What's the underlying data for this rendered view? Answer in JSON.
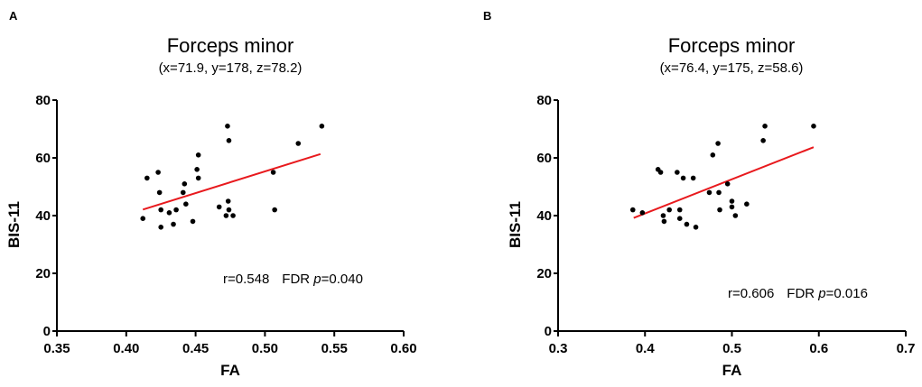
{
  "chart_data": [
    {
      "panel_label": "A",
      "type": "scatter",
      "title": "Forceps minor",
      "subtitle": "(x=71.9, y=178, z=78.2)",
      "xlabel": "FA",
      "ylabel": "BIS-11",
      "xlim": [
        0.35,
        0.6
      ],
      "ylim": [
        0,
        80
      ],
      "xticks": [
        "0.35",
        "0.40",
        "0.45",
        "0.50",
        "0.55",
        "0.60"
      ],
      "yticks": [
        "0",
        "20",
        "40",
        "60",
        "80"
      ],
      "grid": false,
      "point_color": "#000000",
      "fit_color": "#e8191d",
      "points": [
        [
          0.412,
          39
        ],
        [
          0.415,
          53
        ],
        [
          0.423,
          55
        ],
        [
          0.424,
          48
        ],
        [
          0.425,
          42
        ],
        [
          0.425,
          36
        ],
        [
          0.431,
          41
        ],
        [
          0.434,
          37
        ],
        [
          0.436,
          42
        ],
        [
          0.442,
          51
        ],
        [
          0.441,
          48
        ],
        [
          0.443,
          44
        ],
        [
          0.448,
          38
        ],
        [
          0.452,
          61
        ],
        [
          0.451,
          56
        ],
        [
          0.452,
          53
        ],
        [
          0.467,
          43
        ],
        [
          0.473,
          71
        ],
        [
          0.474,
          66
        ],
        [
          0.4735,
          45
        ],
        [
          0.474,
          42
        ],
        [
          0.472,
          40
        ],
        [
          0.477,
          40
        ],
        [
          0.506,
          55
        ],
        [
          0.507,
          42
        ],
        [
          0.524,
          65
        ],
        [
          0.541,
          71
        ]
      ],
      "fit_line": [
        [
          0.412,
          42.1
        ],
        [
          0.54,
          61.3
        ]
      ],
      "stats": {
        "r": "r=0.548",
        "fdr": "FDR ",
        "p_symbol": "p",
        "p_value": "=0.040"
      }
    },
    {
      "panel_label": "B",
      "type": "scatter",
      "title": "Forceps minor",
      "subtitle": "(x=76.4, y=175, z=58.6)",
      "xlabel": "FA",
      "ylabel": "BIS-11",
      "xlim": [
        0.3,
        0.7
      ],
      "ylim": [
        0,
        80
      ],
      "xticks": [
        "0.3",
        "0.4",
        "0.5",
        "0.6",
        "0.7"
      ],
      "yticks": [
        "0",
        "20",
        "40",
        "60",
        "80"
      ],
      "grid": false,
      "point_color": "#000000",
      "fit_color": "#e8191d",
      "points": [
        [
          0.386,
          42
        ],
        [
          0.397,
          41
        ],
        [
          0.415,
          56
        ],
        [
          0.418,
          55
        ],
        [
          0.421,
          40
        ],
        [
          0.422,
          38
        ],
        [
          0.428,
          42
        ],
        [
          0.437,
          55
        ],
        [
          0.44,
          42
        ],
        [
          0.44,
          39
        ],
        [
          0.444,
          53
        ],
        [
          0.448,
          37
        ],
        [
          0.4555,
          53
        ],
        [
          0.4585,
          36
        ],
        [
          0.474,
          48
        ],
        [
          0.478,
          61
        ],
        [
          0.484,
          65
        ],
        [
          0.485,
          48
        ],
        [
          0.486,
          42
        ],
        [
          0.495,
          51
        ],
        [
          0.5,
          45
        ],
        [
          0.5,
          43
        ],
        [
          0.504,
          40
        ],
        [
          0.517,
          44
        ],
        [
          0.536,
          66
        ],
        [
          0.538,
          71
        ],
        [
          0.594,
          71
        ]
      ],
      "fit_line": [
        [
          0.387,
          39.2
        ],
        [
          0.594,
          63.7
        ]
      ],
      "stats": {
        "r": "r=0.606",
        "fdr": "FDR ",
        "p_symbol": "p",
        "p_value": "=0.016"
      }
    }
  ]
}
